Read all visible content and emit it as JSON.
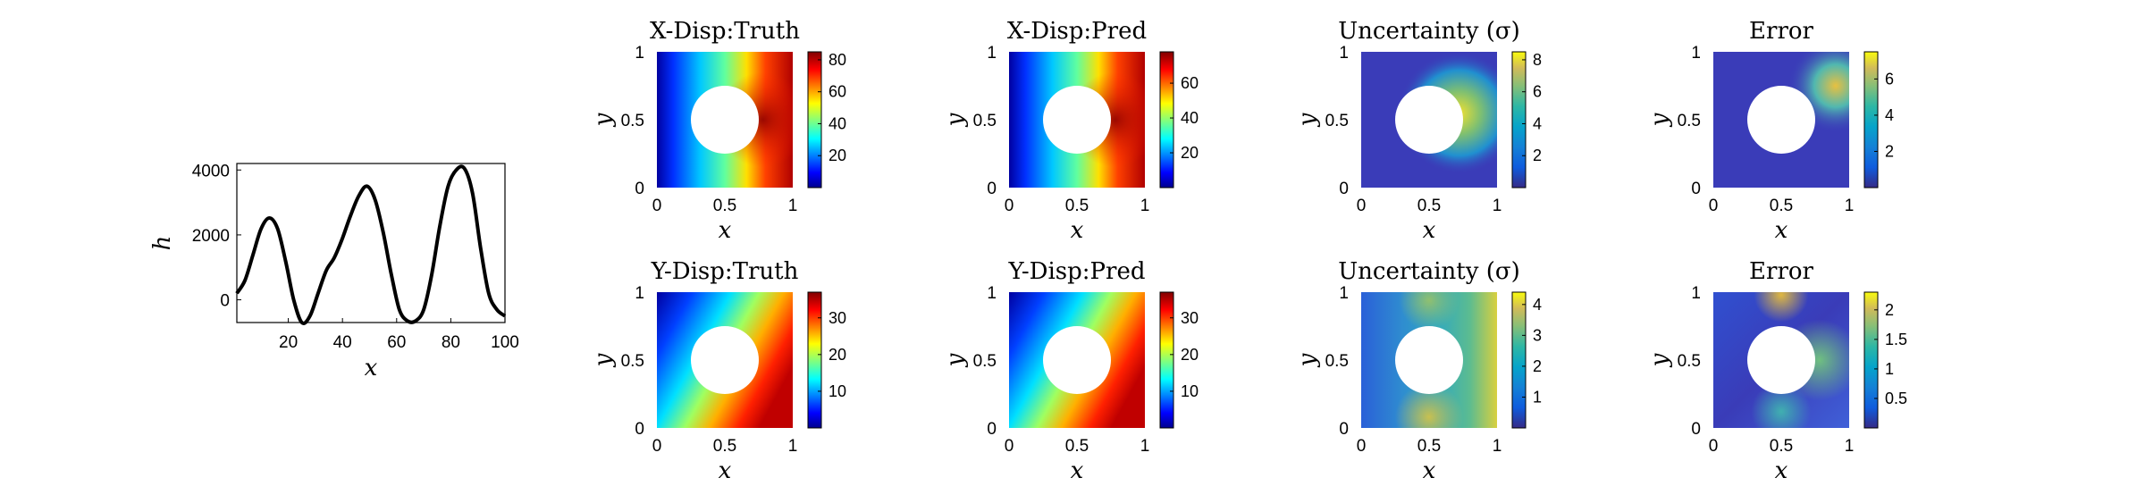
{
  "chart_data": [
    {
      "type": "line",
      "xlabel": "x",
      "ylabel": "h",
      "xlim": [
        1,
        100
      ],
      "ylim": [
        -700,
        4200
      ],
      "xticks": [
        20,
        40,
        60,
        80,
        100
      ],
      "yticks": [
        0,
        2000,
        4000
      ],
      "x": [
        1,
        4,
        7,
        10,
        13,
        16,
        19,
        22,
        25,
        28,
        31,
        34,
        37,
        40,
        43,
        46,
        49,
        52,
        55,
        58,
        61,
        64,
        67,
        70,
        73,
        76,
        79,
        82,
        85,
        88,
        91,
        94,
        97,
        100
      ],
      "values": [
        200,
        600,
        1400,
        2200,
        2520,
        2200,
        1200,
        0,
        -700,
        -500,
        200,
        900,
        1300,
        1900,
        2600,
        3200,
        3500,
        3100,
        2100,
        800,
        -300,
        -650,
        -650,
        -300,
        800,
        2300,
        3500,
        4000,
        4050,
        3300,
        1600,
        200,
        -300,
        -500
      ],
      "grid": false
    },
    {
      "type": "heatmap",
      "title": "X-Disp:Truth",
      "xlabel": "x",
      "ylabel": "y",
      "xlim": [
        0,
        1
      ],
      "ylim": [
        0,
        1
      ],
      "xticks": [
        "0",
        "0.5",
        "1"
      ],
      "yticks": [
        "0",
        "0.5",
        "1"
      ],
      "colormap": "jet",
      "clim": [
        0,
        85
      ],
      "colorbar_ticks": [
        20,
        40,
        60,
        80
      ],
      "hole": {
        "center": [
          0.5,
          0.5
        ],
        "radius": 0.25
      }
    },
    {
      "type": "heatmap",
      "title": "X-Disp:Pred",
      "xlabel": "x",
      "ylabel": "y",
      "xlim": [
        0,
        1
      ],
      "ylim": [
        0,
        1
      ],
      "xticks": [
        "0",
        "0.5",
        "1"
      ],
      "yticks": [
        "0",
        "0.5",
        "1"
      ],
      "colormap": "jet",
      "clim": [
        0,
        78
      ],
      "colorbar_ticks": [
        20,
        40,
        60
      ],
      "hole": {
        "center": [
          0.5,
          0.5
        ],
        "radius": 0.25
      }
    },
    {
      "type": "heatmap",
      "title": "Uncertainty (σ)",
      "xlabel": "x",
      "ylabel": "y",
      "xlim": [
        0,
        1
      ],
      "ylim": [
        0,
        1
      ],
      "xticks": [
        "0",
        "0.5",
        "1"
      ],
      "yticks": [
        "0",
        "0.5",
        "1"
      ],
      "colormap": "parula",
      "clim": [
        0,
        8.5
      ],
      "colorbar_ticks": [
        2,
        4,
        6,
        8
      ],
      "hole": {
        "center": [
          0.5,
          0.5
        ],
        "radius": 0.25
      }
    },
    {
      "type": "heatmap",
      "title": "Error",
      "xlabel": "x",
      "ylabel": "y",
      "xlim": [
        0,
        1
      ],
      "ylim": [
        0,
        1
      ],
      "xticks": [
        "0",
        "0.5",
        "1"
      ],
      "yticks": [
        "0",
        "0.5",
        "1"
      ],
      "colormap": "parula",
      "clim": [
        0,
        7.5
      ],
      "colorbar_ticks": [
        2,
        4,
        6
      ],
      "hole": {
        "center": [
          0.5,
          0.5
        ],
        "radius": 0.25
      }
    },
    {
      "type": "heatmap",
      "title": "Y-Disp:Truth",
      "xlabel": "x",
      "ylabel": "y",
      "xlim": [
        0,
        1
      ],
      "ylim": [
        0,
        1
      ],
      "xticks": [
        "0",
        "0.5",
        "1"
      ],
      "yticks": [
        "0",
        "0.5",
        "1"
      ],
      "colormap": "jet",
      "clim": [
        0,
        37
      ],
      "colorbar_ticks": [
        10,
        20,
        30
      ],
      "hole": {
        "center": [
          0.5,
          0.5
        ],
        "radius": 0.25
      }
    },
    {
      "type": "heatmap",
      "title": "Y-Disp:Pred",
      "xlabel": "x",
      "ylabel": "y",
      "xlim": [
        0,
        1
      ],
      "ylim": [
        0,
        1
      ],
      "xticks": [
        "0",
        "0.5",
        "1"
      ],
      "yticks": [
        "0",
        "0.5",
        "1"
      ],
      "colormap": "jet",
      "clim": [
        0,
        37
      ],
      "colorbar_ticks": [
        10,
        20,
        30
      ],
      "hole": {
        "center": [
          0.5,
          0.5
        ],
        "radius": 0.25
      }
    },
    {
      "type": "heatmap",
      "title": "Uncertainty (σ)",
      "xlabel": "x",
      "ylabel": "y",
      "xlim": [
        0,
        1
      ],
      "ylim": [
        0,
        1
      ],
      "xticks": [
        "0",
        "0.5",
        "1"
      ],
      "yticks": [
        "0",
        "0.5",
        "1"
      ],
      "colormap": "parula",
      "clim": [
        0,
        4.4
      ],
      "colorbar_ticks": [
        1,
        2,
        3,
        4
      ],
      "hole": {
        "center": [
          0.5,
          0.5
        ],
        "radius": 0.25
      }
    },
    {
      "type": "heatmap",
      "title": "Error",
      "xlabel": "x",
      "ylabel": "y",
      "xlim": [
        0,
        1
      ],
      "ylim": [
        0,
        1
      ],
      "xticks": [
        "0",
        "0.5",
        "1"
      ],
      "yticks": [
        "0",
        "0.5",
        "1"
      ],
      "colormap": "parula",
      "clim": [
        0,
        2.3
      ],
      "colorbar_ticks": [
        0.5,
        1,
        1.5,
        2
      ],
      "hole": {
        "center": [
          0.5,
          0.5
        ],
        "radius": 0.25
      }
    }
  ]
}
